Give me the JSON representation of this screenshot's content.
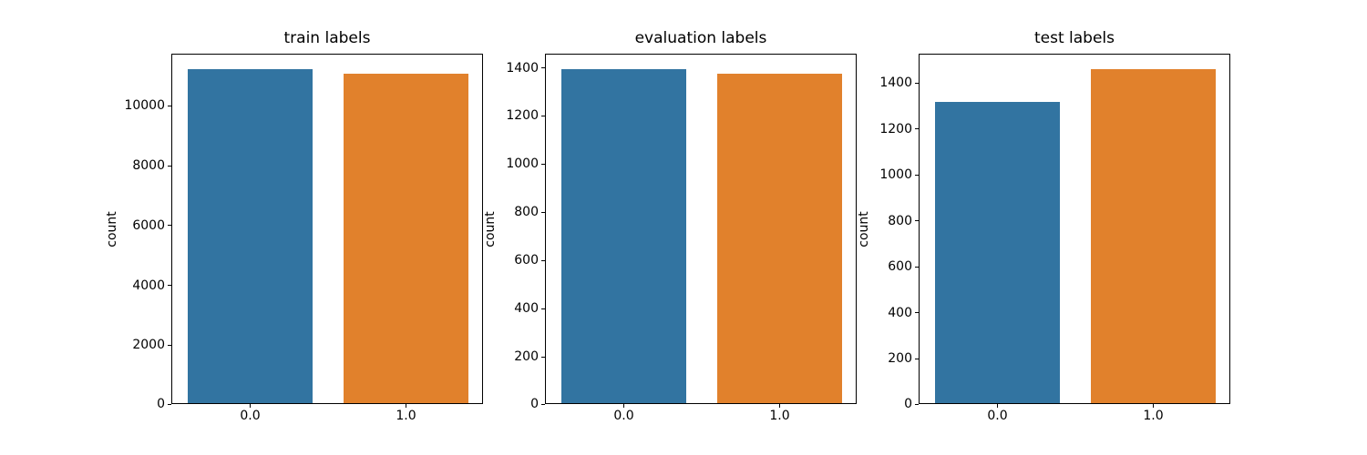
{
  "figure": {
    "background_color": "#ffffff",
    "text_color": "#000000",
    "spine_color": "#000000"
  },
  "chart_data": [
    {
      "type": "bar",
      "title": "train labels",
      "xlabel": "",
      "ylabel": "count",
      "categories": [
        "0.0",
        "1.0"
      ],
      "values": [
        11160,
        11010
      ],
      "bar_colors": [
        "#3274a1",
        "#e1812c"
      ],
      "ylim": [
        0,
        11718
      ],
      "yticks": [
        0,
        2000,
        4000,
        6000,
        8000,
        10000
      ],
      "grid": false,
      "legend": null
    },
    {
      "type": "bar",
      "title": "evaluation labels",
      "xlabel": "",
      "ylabel": "count",
      "categories": [
        "0.0",
        "1.0"
      ],
      "values": [
        1386,
        1367
      ],
      "bar_colors": [
        "#3274a1",
        "#e1812c"
      ],
      "ylim": [
        0,
        1455
      ],
      "yticks": [
        0,
        200,
        400,
        600,
        800,
        1000,
        1200,
        1400
      ],
      "grid": false,
      "legend": null
    },
    {
      "type": "bar",
      "title": "test labels",
      "xlabel": "",
      "ylabel": "count",
      "categories": [
        "0.0",
        "1.0"
      ],
      "values": [
        1308,
        1450
      ],
      "bar_colors": [
        "#3274a1",
        "#e1812c"
      ],
      "ylim": [
        0,
        1523
      ],
      "yticks": [
        0,
        200,
        400,
        600,
        800,
        1000,
        1200,
        1400
      ],
      "grid": false,
      "legend": null
    }
  ]
}
